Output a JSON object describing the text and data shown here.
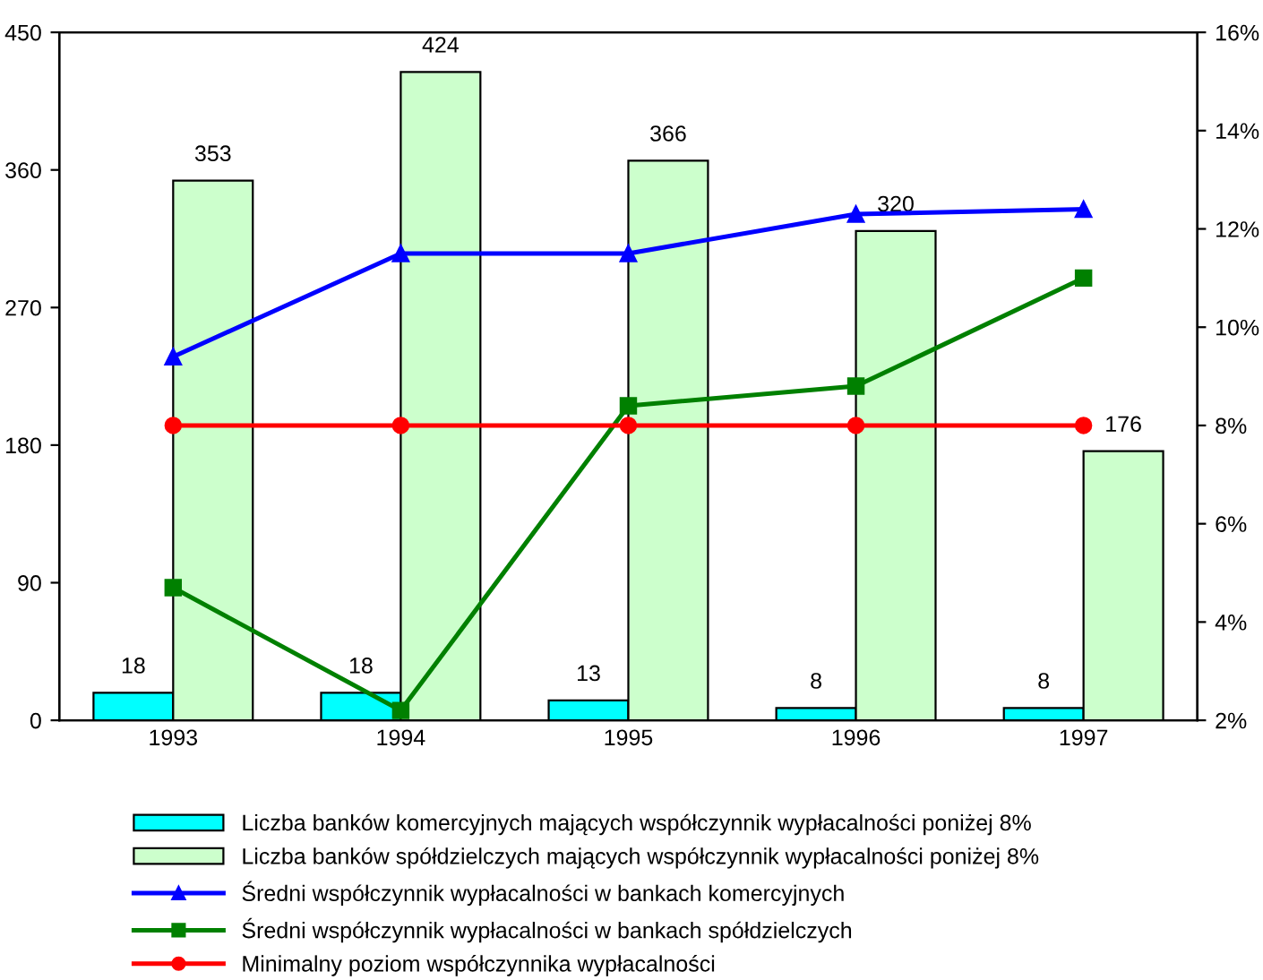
{
  "chart_data": {
    "type": "bar",
    "categories": [
      "1993",
      "1994",
      "1995",
      "1996",
      "1997"
    ],
    "series": [
      {
        "name": "Liczba banków komercyjnych mających współczynnik wypłacalności poniżej 8%",
        "color": "#00ffff",
        "values": [
          18,
          18,
          13,
          8,
          8
        ],
        "value_labels": [
          "18",
          "18",
          "13",
          "8",
          "8"
        ]
      },
      {
        "name": "Liczba banków spółdzielczych mających współczynnik wypłacalności poniżej 8%",
        "color": "#ccffcc",
        "values": [
          353,
          424,
          366,
          320,
          176
        ],
        "value_labels": [
          "353",
          "424",
          "366",
          "320",
          "176"
        ]
      },
      {
        "name": "Średni współczynnik wypłacalności w bankach komercyjnych",
        "type": "line",
        "axis": "y2",
        "color": "#0000ff",
        "marker": "triangle",
        "values": [
          9.4,
          11.5,
          11.5,
          12.3,
          12.4
        ]
      },
      {
        "name": "Średni współczynnik wypłacalności w bankach spółdzielczych",
        "type": "line",
        "axis": "y2",
        "color": "#008000",
        "marker": "square",
        "values": [
          4.7,
          2.2,
          8.4,
          8.8,
          11.0
        ]
      },
      {
        "name": "Minimalny poziom współczynnika wypłacalności",
        "type": "line",
        "axis": "y2",
        "color": "#ff0000",
        "marker": "circle",
        "values": [
          8,
          8,
          8,
          8,
          8
        ]
      }
    ],
    "ylim": [
      0,
      450
    ],
    "yticks": [
      0,
      90,
      180,
      270,
      360,
      450
    ],
    "y2lim": [
      2,
      16
    ],
    "y2ticks": [
      {
        "value": 2,
        "label": "2%"
      },
      {
        "value": 4,
        "label": "4%"
      },
      {
        "value": 6,
        "label": "6%"
      },
      {
        "value": 8,
        "label": "8%"
      },
      {
        "value": 10,
        "label": "10%"
      },
      {
        "value": 12,
        "label": "12%"
      },
      {
        "value": 14,
        "label": "14%"
      },
      {
        "value": 16,
        "label": "16%"
      }
    ],
    "grid": false,
    "legend": "bottom",
    "line_style": "solid"
  }
}
